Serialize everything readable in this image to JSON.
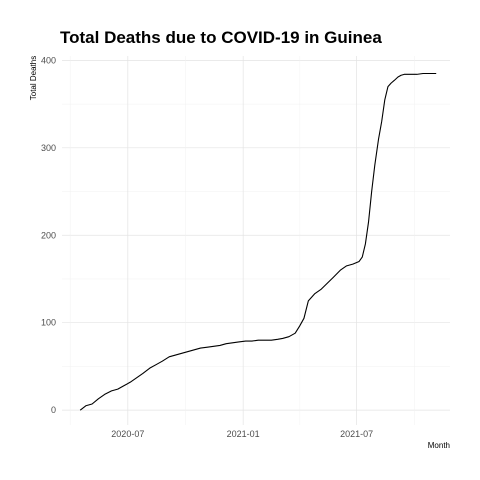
{
  "chart_data": {
    "type": "line",
    "title": "Total Deaths due to COVID-19 in Guinea",
    "xlabel": "Month",
    "ylabel": "Total Deaths",
    "x_ticks": [
      "2020-07",
      "2021-01",
      "2021-07"
    ],
    "y_ticks": [
      0,
      100,
      200,
      300,
      400
    ],
    "xlim": [
      "2020-03-18",
      "2021-11-27"
    ],
    "ylim": [
      -17,
      405
    ],
    "grid": true,
    "legend": "none",
    "line_color": "#000000",
    "series": [
      {
        "x": [
          "2020-04-16",
          "2020-04-25",
          "2020-05-05",
          "2020-05-15",
          "2020-05-25",
          "2020-06-05",
          "2020-06-15",
          "2020-06-25",
          "2020-07-05",
          "2020-07-15",
          "2020-07-25",
          "2020-08-05",
          "2020-08-15",
          "2020-08-25",
          "2020-09-05",
          "2020-09-15",
          "2020-09-25",
          "2020-10-05",
          "2020-10-15",
          "2020-10-25",
          "2020-11-05",
          "2020-11-15",
          "2020-11-25",
          "2020-12-05",
          "2020-12-15",
          "2020-12-25",
          "2021-01-05",
          "2021-01-15",
          "2021-01-25",
          "2021-02-05",
          "2021-02-15",
          "2021-02-25",
          "2021-03-05",
          "2021-03-15",
          "2021-03-25",
          "2021-04-01",
          "2021-04-08",
          "2021-04-15",
          "2021-04-25",
          "2021-05-05",
          "2021-05-15",
          "2021-05-25",
          "2021-06-05",
          "2021-06-15",
          "2021-06-25",
          "2021-07-05",
          "2021-07-10",
          "2021-07-15",
          "2021-07-20",
          "2021-07-25",
          "2021-07-30",
          "2021-08-05",
          "2021-08-10",
          "2021-08-15",
          "2021-08-20",
          "2021-08-25",
          "2021-08-30",
          "2021-09-05",
          "2021-09-10",
          "2021-09-15",
          "2021-09-25",
          "2021-10-05",
          "2021-10-15",
          "2021-10-25",
          "2021-11-05"
        ],
        "y": [
          0,
          5,
          7,
          13,
          18,
          22,
          24,
          28,
          32,
          37,
          42,
          48,
          52,
          56,
          61,
          63,
          65,
          67,
          69,
          71,
          72,
          73,
          74,
          76,
          77,
          78,
          79,
          79,
          80,
          80,
          80,
          81,
          82,
          84,
          88,
          96,
          105,
          125,
          133,
          138,
          145,
          152,
          160,
          165,
          167,
          170,
          175,
          190,
          215,
          250,
          280,
          310,
          330,
          355,
          370,
          374,
          377,
          381,
          383,
          384,
          384,
          384,
          385,
          385,
          385
        ]
      }
    ]
  }
}
